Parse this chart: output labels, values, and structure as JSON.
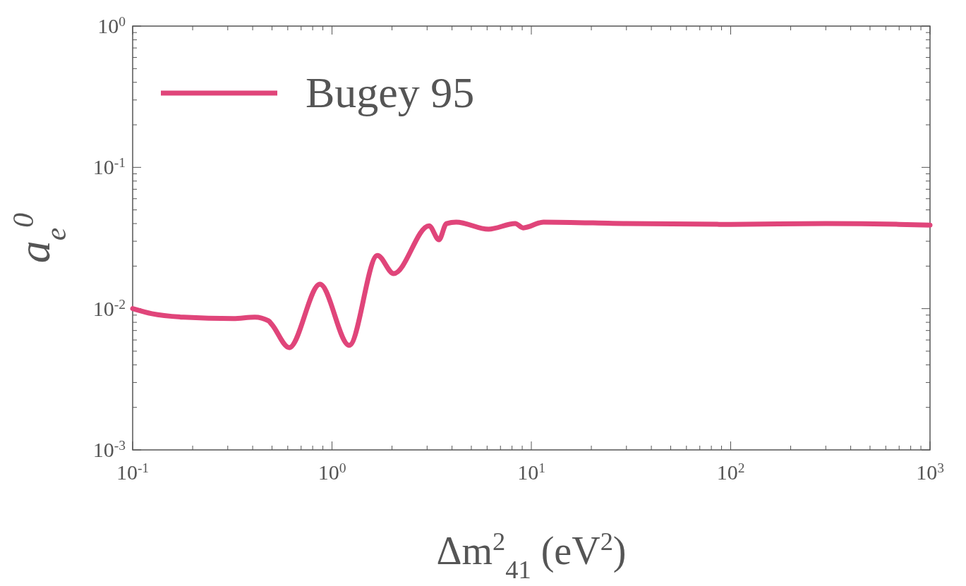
{
  "chart_data": {
    "type": "line",
    "xlabel": "Δm$^{2}$$_{41}$ (eV$^{2}$)",
    "ylabel": "a$_{e}$$^{0}$",
    "log": "xy",
    "legend": "top left",
    "grid": false,
    "xlim": [
      0.1,
      1000
    ],
    "ylim": [
      0.001,
      1
    ],
    "xticks": [
      {
        "value": 0.1,
        "label": "10$^{-1}$"
      },
      {
        "value": 0.2,
        "label": null
      },
      {
        "value": 0.3,
        "label": null
      },
      {
        "value": 0.4,
        "label": null
      },
      {
        "value": 0.5,
        "label": null
      },
      {
        "value": 0.6,
        "label": null
      },
      {
        "value": 0.7,
        "label": null
      },
      {
        "value": 0.8,
        "label": null
      },
      {
        "value": 0.9,
        "label": null
      },
      {
        "value": 1,
        "label": "10$^{0}$"
      },
      {
        "value": 2,
        "label": null
      },
      {
        "value": 3,
        "label": null
      },
      {
        "value": 4,
        "label": null
      },
      {
        "value": 5,
        "label": null
      },
      {
        "value": 6,
        "label": null
      },
      {
        "value": 7,
        "label": null
      },
      {
        "value": 8,
        "label": null
      },
      {
        "value": 9,
        "label": null
      },
      {
        "value": 10,
        "label": "10$^{1}$"
      },
      {
        "value": 20,
        "label": null
      },
      {
        "value": 30,
        "label": null
      },
      {
        "value": 40,
        "label": null
      },
      {
        "value": 50,
        "label": null
      },
      {
        "value": 60,
        "label": null
      },
      {
        "value": 70,
        "label": null
      },
      {
        "value": 80,
        "label": null
      },
      {
        "value": 90,
        "label": null
      },
      {
        "value": 100,
        "label": "10$^{2}$"
      },
      {
        "value": 200,
        "label": null
      },
      {
        "value": 300,
        "label": null
      },
      {
        "value": 400,
        "label": null
      },
      {
        "value": 500,
        "label": null
      },
      {
        "value": 600,
        "label": null
      },
      {
        "value": 700,
        "label": null
      },
      {
        "value": 800,
        "label": null
      },
      {
        "value": 900,
        "label": null
      },
      {
        "value": 1000,
        "label": "10$^{3}$"
      }
    ],
    "yticks": [
      {
        "value": 0.001,
        "label": "10$^{-3}$"
      },
      {
        "value": 0.002,
        "label": null
      },
      {
        "value": 0.003,
        "label": null
      },
      {
        "value": 0.004,
        "label": null
      },
      {
        "value": 0.005,
        "label": null
      },
      {
        "value": 0.006,
        "label": null
      },
      {
        "value": 0.007,
        "label": null
      },
      {
        "value": 0.008,
        "label": null
      },
      {
        "value": 0.009,
        "label": null
      },
      {
        "value": 0.01,
        "label": "10$^{-2}$"
      },
      {
        "value": 0.02,
        "label": null
      },
      {
        "value": 0.03,
        "label": null
      },
      {
        "value": 0.04,
        "label": null
      },
      {
        "value": 0.05,
        "label": null
      },
      {
        "value": 0.06,
        "label": null
      },
      {
        "value": 0.07,
        "label": null
      },
      {
        "value": 0.08,
        "label": null
      },
      {
        "value": 0.09,
        "label": null
      },
      {
        "value": 0.1,
        "label": "10$^{-1}$"
      },
      {
        "value": 0.2,
        "label": null
      },
      {
        "value": 0.3,
        "label": null
      },
      {
        "value": 0.4,
        "label": null
      },
      {
        "value": 0.5,
        "label": null
      },
      {
        "value": 0.6,
        "label": null
      },
      {
        "value": 0.7,
        "label": null
      },
      {
        "value": 0.8,
        "label": null
      },
      {
        "value": 0.9,
        "label": null
      },
      {
        "value": 1,
        "label": "10$^{0}$"
      }
    ],
    "series": [
      {
        "name": "Bugey 95",
        "color": "#e0457a",
        "x": [
          0.1,
          0.125,
          0.18,
          0.32,
          0.41,
          0.48,
          0.5,
          0.61,
          0.87,
          1.22,
          1.69,
          2.04,
          3.07,
          3.44,
          3.75,
          4.2,
          6.1,
          8.3,
          9.1,
          11.5,
          30,
          100,
          300,
          700,
          1000
        ],
        "values": [
          0.01,
          0.0092,
          0.0087,
          0.0085,
          0.0087,
          0.0082,
          0.0077,
          0.0053,
          0.0149,
          0.0055,
          0.0238,
          0.0177,
          0.0386,
          0.0307,
          0.04,
          0.041,
          0.0365,
          0.04,
          0.0373,
          0.041,
          0.04,
          0.0395,
          0.04,
          0.0395,
          0.039
        ]
      }
    ]
  }
}
